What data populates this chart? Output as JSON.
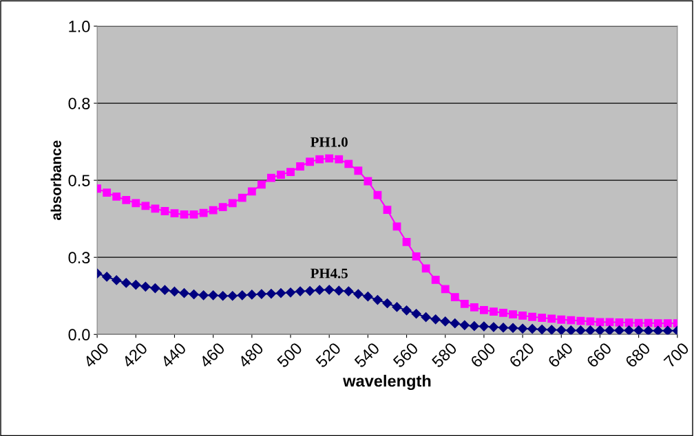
{
  "chart_data": {
    "type": "line",
    "xlabel": "wavelength",
    "ylabel": "absorbance",
    "x": [
      400,
      405,
      410,
      415,
      420,
      425,
      430,
      435,
      440,
      445,
      450,
      455,
      460,
      465,
      470,
      475,
      480,
      485,
      490,
      495,
      500,
      505,
      510,
      515,
      520,
      525,
      530,
      535,
      540,
      545,
      550,
      555,
      560,
      565,
      570,
      575,
      580,
      585,
      590,
      595,
      600,
      605,
      610,
      615,
      620,
      625,
      630,
      635,
      640,
      645,
      650,
      655,
      660,
      665,
      670,
      675,
      680,
      685,
      690,
      695,
      700
    ],
    "series": [
      {
        "name": "PH1.0",
        "color": "#ff00ff",
        "marker": "square",
        "values": [
          0.473,
          0.46,
          0.447,
          0.436,
          0.426,
          0.417,
          0.408,
          0.4,
          0.393,
          0.389,
          0.389,
          0.394,
          0.403,
          0.413,
          0.426,
          0.443,
          0.464,
          0.486,
          0.508,
          0.518,
          0.527,
          0.545,
          0.56,
          0.568,
          0.571,
          0.568,
          0.553,
          0.531,
          0.497,
          0.452,
          0.404,
          0.35,
          0.3,
          0.253,
          0.214,
          0.177,
          0.147,
          0.121,
          0.099,
          0.088,
          0.079,
          0.074,
          0.07,
          0.065,
          0.061,
          0.057,
          0.054,
          0.051,
          0.048,
          0.046,
          0.044,
          0.042,
          0.04,
          0.04,
          0.039,
          0.038,
          0.037,
          0.037,
          0.036,
          0.036,
          0.036
        ]
      },
      {
        "name": "PH4.5",
        "color": "#000080",
        "marker": "diamond",
        "values": [
          0.198,
          0.187,
          0.176,
          0.167,
          0.161,
          0.155,
          0.15,
          0.144,
          0.139,
          0.134,
          0.13,
          0.127,
          0.127,
          0.125,
          0.125,
          0.127,
          0.129,
          0.131,
          0.132,
          0.134,
          0.136,
          0.14,
          0.141,
          0.144,
          0.145,
          0.142,
          0.14,
          0.131,
          0.123,
          0.112,
          0.101,
          0.089,
          0.078,
          0.067,
          0.056,
          0.049,
          0.042,
          0.036,
          0.03,
          0.027,
          0.026,
          0.024,
          0.022,
          0.021,
          0.019,
          0.018,
          0.016,
          0.015,
          0.014,
          0.013,
          0.013,
          0.013,
          0.013,
          0.013,
          0.013,
          0.013,
          0.013,
          0.012,
          0.012,
          0.012,
          0.012
        ]
      }
    ],
    "xlim": [
      400,
      700
    ],
    "xticks": [
      400,
      420,
      440,
      460,
      480,
      500,
      520,
      540,
      560,
      580,
      600,
      620,
      640,
      660,
      680,
      700
    ],
    "ylim": [
      0,
      1
    ],
    "yticks": [
      {
        "value": 0,
        "label": "0.0"
      },
      {
        "value": 0.25,
        "label": "0.3"
      },
      {
        "value": 0.5,
        "label": "0.5"
      },
      {
        "value": 0.75,
        "label": "0.8"
      },
      {
        "value": 1,
        "label": "1.0"
      }
    ],
    "grid": "y",
    "legend": false
  }
}
